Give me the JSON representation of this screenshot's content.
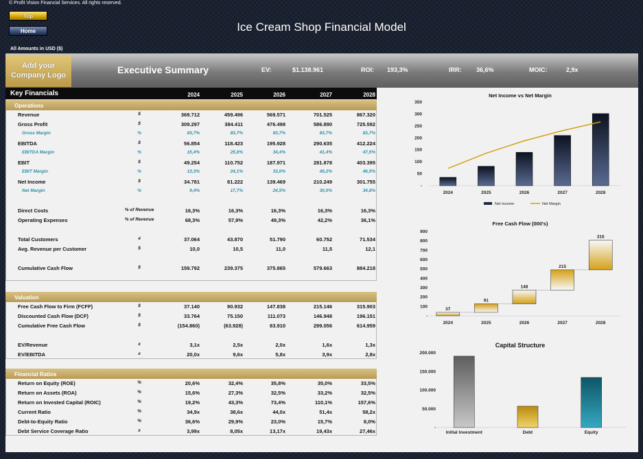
{
  "copyright": "© Profit Vision Financial Services. All rights reserved.",
  "nav": {
    "top": "Top",
    "home": "Home"
  },
  "title": "Ice Cream Shop Financial Model",
  "amounts_note": "All Amounts in  USD ($)",
  "header": {
    "logo_line1": "Add your",
    "logo_line2": "Company Logo",
    "section": "Executive Summary",
    "kpis": [
      {
        "label": "EV:",
        "value": "$1.138.961"
      },
      {
        "label": "ROI:",
        "value": "193,3%"
      },
      {
        "label": "IRR:",
        "value": "36,6%"
      },
      {
        "label": "MOIC:",
        "value": "2,9x"
      }
    ]
  },
  "key_financials": {
    "title": "Key Financials",
    "years": [
      "2024",
      "2025",
      "2026",
      "2027",
      "2028"
    ]
  },
  "sections": {
    "operations": "Operations",
    "valuation": "Valuation",
    "ratios": "Financial Ratios"
  },
  "operations_rows": [
    {
      "label": "Revenue",
      "unit": "$",
      "values": [
        "369.712",
        "459.496",
        "569.571",
        "701.525",
        "867.320"
      ]
    },
    {
      "label": "Gross Profit",
      "unit": "$",
      "values": [
        "309.297",
        "384.411",
        "476.498",
        "586.890",
        "725.592"
      ]
    },
    {
      "label": "Gross Margin",
      "unit": "%",
      "sub": true,
      "values": [
        "83,7%",
        "83,7%",
        "83,7%",
        "83,7%",
        "83,7%"
      ]
    },
    {
      "label": "EBITDA",
      "unit": "$",
      "values": [
        "56.854",
        "118.423",
        "195.928",
        "290.635",
        "412.224"
      ]
    },
    {
      "label": "EBITDA Margin",
      "unit": "%",
      "sub": true,
      "values": [
        "15,4%",
        "25,8%",
        "34,4%",
        "41,4%",
        "47,5%"
      ]
    },
    {
      "label": "EBIT",
      "unit": "$",
      "values": [
        "49.254",
        "110.752",
        "187.971",
        "281.878",
        "403.395"
      ]
    },
    {
      "label": "EBIT Margin",
      "unit": "%",
      "sub": true,
      "values": [
        "13,3%",
        "24,1%",
        "33,0%",
        "40,2%",
        "46,5%"
      ]
    },
    {
      "label": "Net Income",
      "unit": "$",
      "values": [
        "34.781",
        "81.222",
        "139.469",
        "210.249",
        "301.755"
      ]
    },
    {
      "label": "Net Margin",
      "unit": "%",
      "sub": true,
      "values": [
        "9,4%",
        "17,7%",
        "24,5%",
        "30,0%",
        "34,8%"
      ]
    },
    {
      "label": "Direct Costs",
      "unit": "% of Revenue",
      "values": [
        "16,3%",
        "16,3%",
        "16,3%",
        "16,3%",
        "16,3%"
      ]
    },
    {
      "label": "Operating Expenses",
      "unit": "% of Revenue",
      "values": [
        "68,3%",
        "57,9%",
        "49,3%",
        "42,2%",
        "36,1%"
      ]
    },
    {
      "label": "Total Customers",
      "unit": "#",
      "values": [
        "37.064",
        "43.870",
        "51.790",
        "60.752",
        "71.534"
      ]
    },
    {
      "label": "Avg. Revenue per Customer",
      "unit": "$",
      "values": [
        "10,0",
        "10,5",
        "11,0",
        "11,5",
        "12,1"
      ]
    },
    {
      "label": "Cumulative Cash Flow",
      "unit": "$",
      "values": [
        "159.792",
        "239.375",
        "375.865",
        "579.663",
        "884.218"
      ]
    }
  ],
  "valuation_rows": [
    {
      "label": "Free Cash Flow to Firm (FCFF)",
      "unit": "$",
      "values": [
        "37.140",
        "90.932",
        "147.838",
        "215.146",
        "315.903"
      ]
    },
    {
      "label": "Discounted Cash Flow (DCF)",
      "unit": "$",
      "values": [
        "33.764",
        "75.150",
        "111.073",
        "146.948",
        "196.151"
      ]
    },
    {
      "label": "Cumulative Free Cash Flow",
      "unit": "$",
      "values": [
        "(154.860)",
        "(63.928)",
        "83.910",
        "299.056",
        "614.959"
      ]
    },
    {
      "label": "EV/Revenue",
      "unit": "x",
      "values": [
        "3,1x",
        "2,5x",
        "2,0x",
        "1,6x",
        "1,3x"
      ]
    },
    {
      "label": "EV/EBITDA",
      "unit": "x",
      "values": [
        "20,0x",
        "9,6x",
        "5,8x",
        "3,9x",
        "2,8x"
      ]
    }
  ],
  "ratio_rows": [
    {
      "label": "Return on Equity (ROE)",
      "unit": "%",
      "values": [
        "20,6%",
        "32,4%",
        "35,8%",
        "35,0%",
        "33,5%"
      ]
    },
    {
      "label": "Return on Assets (ROA)",
      "unit": "%",
      "values": [
        "15,6%",
        "27,3%",
        "32,5%",
        "33,2%",
        "32,5%"
      ]
    },
    {
      "label": "Return on Invested Capital (ROIC)",
      "unit": "%",
      "values": [
        "19,2%",
        "43,3%",
        "73,4%",
        "110,1%",
        "157,6%"
      ]
    },
    {
      "label": "Current Ratio",
      "unit": "%",
      "values": [
        "34,9x",
        "38,6x",
        "44,0x",
        "51,4x",
        "58,2x"
      ]
    },
    {
      "label": "Debt-to-Equity Ratio",
      "unit": "%",
      "values": [
        "36,6%",
        "29,9%",
        "23,0%",
        "15,7%",
        "8,0%"
      ]
    },
    {
      "label": "Debt Service Coverage Ratio",
      "unit": "x",
      "values": [
        "3,99x",
        "8,05x",
        "13,17x",
        "19,43x",
        "27,46x"
      ]
    }
  ],
  "chart_data": [
    {
      "type": "bar",
      "title": "Net Income vs Net Margin",
      "categories": [
        "2024",
        "2025",
        "2026",
        "2027",
        "2028"
      ],
      "series": [
        {
          "name": "Net Income",
          "type": "bar",
          "values": [
            34.781,
            81.222,
            139.469,
            210.249,
            301.755
          ]
        },
        {
          "name": "Net Margin",
          "type": "line",
          "values": [
            9.4,
            17.7,
            24.5,
            30.0,
            34.8
          ]
        }
      ],
      "ylim": [
        0,
        350
      ],
      "yticks": [
        "350",
        "300",
        "250",
        "200",
        "150",
        "100",
        "50",
        "-"
      ],
      "legend": "bottom",
      "color_bar": "#1e2a44",
      "color_line": "#d4a017"
    },
    {
      "type": "bar",
      "title": "Free Cash Flow (000's)",
      "subtype": "waterfall",
      "categories": [
        "2024",
        "2025",
        "2026",
        "2027",
        "2028"
      ],
      "values": [
        37,
        91,
        148,
        215,
        316
      ],
      "data_labels": [
        "37",
        "91",
        "148",
        "215",
        "316"
      ],
      "ylim": [
        0,
        900
      ],
      "yticks": [
        "900",
        "800",
        "700",
        "600",
        "500",
        "400",
        "300",
        "200",
        "100",
        "-"
      ],
      "color": "#d4a017"
    },
    {
      "type": "bar",
      "title": "Capital Structure",
      "categories": [
        "Initial Investment",
        "Debt",
        "Equity"
      ],
      "values": [
        191000,
        57000,
        134000
      ],
      "ylim": [
        0,
        200000
      ],
      "yticks": [
        "200.000",
        "150.000",
        "100.000",
        "50.000",
        "-"
      ],
      "colors": [
        "#7a7a7a",
        "#d4a017",
        "#1f7f95"
      ]
    }
  ]
}
